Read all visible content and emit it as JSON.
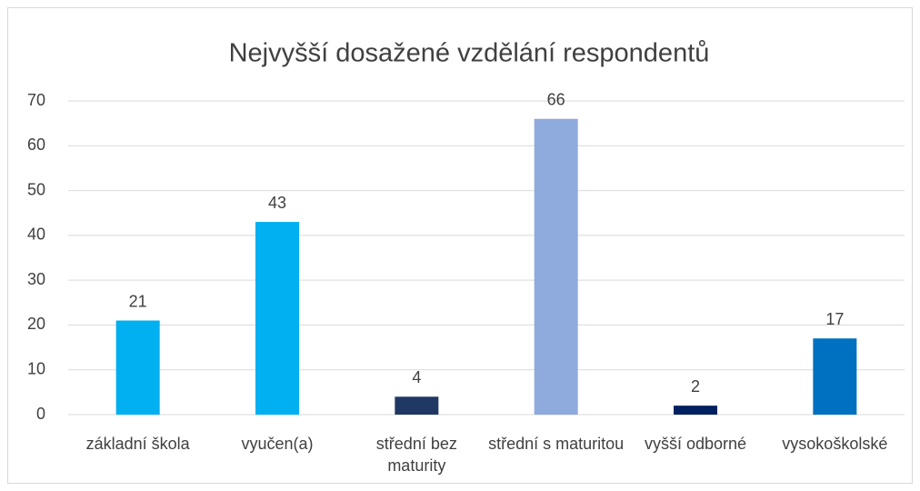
{
  "chart_data": {
    "type": "bar",
    "title": "Nejvyšší dosažené vzdělání respondentů",
    "categories": [
      "základní škola",
      "vyučen(a)",
      "střední bez maturity",
      "střední s maturitou",
      "vyšší odborné",
      "vysokoškolské"
    ],
    "values": [
      21,
      43,
      4,
      66,
      2,
      17
    ],
    "colors": [
      "#00b0f0",
      "#00b0f0",
      "#203864",
      "#8faadc",
      "#002060",
      "#0070c0"
    ],
    "ylim": [
      0,
      70
    ],
    "yticks": [
      0,
      10,
      20,
      30,
      40,
      50,
      60,
      70
    ],
    "grid": true
  }
}
